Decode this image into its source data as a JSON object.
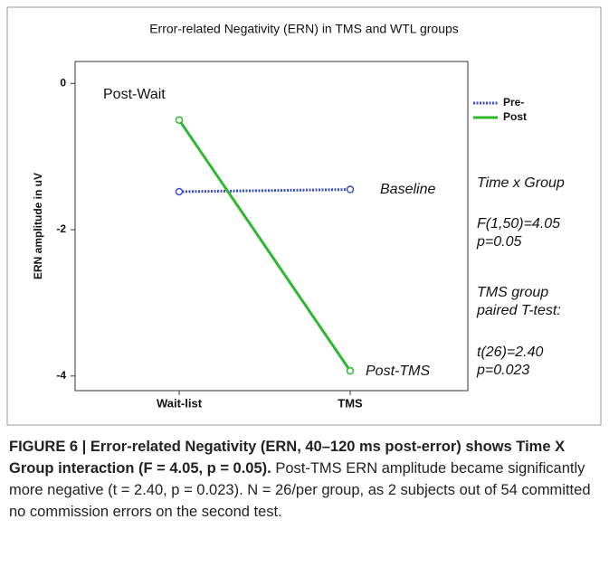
{
  "chart_data": {
    "type": "line",
    "title": "Error-related Negativity (ERN) in TMS and WTL groups",
    "ylabel": "ERN amplitude in uV",
    "categories": [
      "Wait-list",
      "TMS"
    ],
    "series": [
      {
        "name": "Pre-",
        "color": "#3a4fc4",
        "dash": "dotted",
        "values": [
          -1.48,
          -1.45
        ]
      },
      {
        "name": "Post",
        "color": "#2db82d",
        "dash": "solid",
        "values": [
          -0.5,
          -3.93
        ]
      }
    ],
    "ylim": [
      -4.2,
      0.3
    ],
    "yticks": [
      0,
      -2,
      -4
    ],
    "grid": false,
    "legend": "outside-top-right",
    "annotations": [
      "Post-Wait",
      "Baseline",
      "Post-TMS"
    ],
    "stats": [
      "Time x Group",
      "F(1,50)=4.05",
      "p=0.05",
      "TMS group",
      "paired T-test:",
      "t(26)=2.40",
      "p=0.023"
    ]
  },
  "caption": {
    "bold": "FIGURE 6 | Error-related Negativity (ERN, 40–120 ms post-error) shows Time X Group interaction (F = 4.05, p = 0.05).",
    "text": "Post-TMS ERN amplitude became significantly more negative (t = 2.40, p = 0.023). N = 26/per group, as 2 subjects out of 54 committed no commission errors on the second test."
  }
}
